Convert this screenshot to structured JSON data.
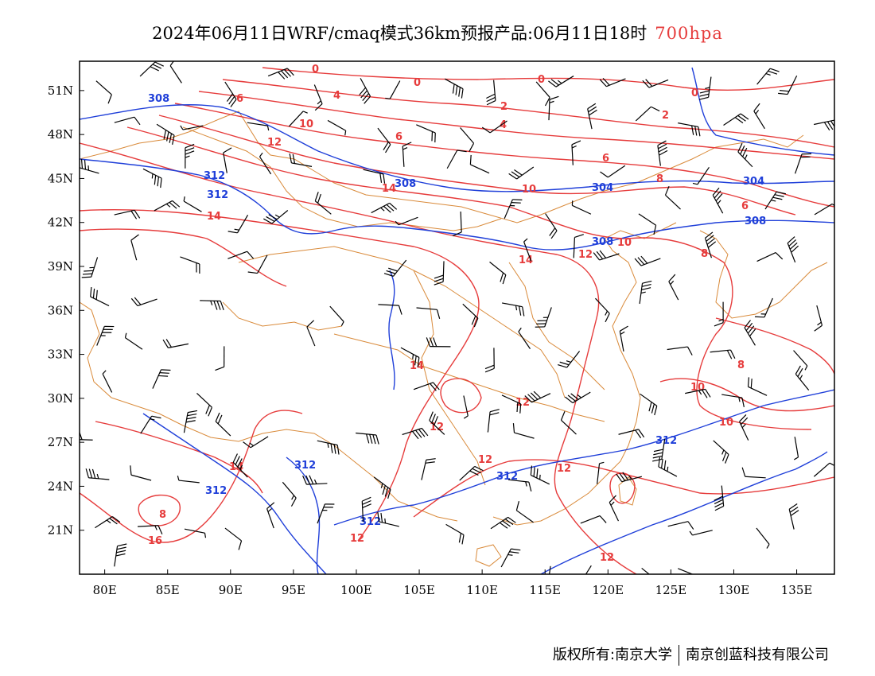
{
  "title": {
    "main": "2024年06月11日WRF/cmaq模式36km预报产品:06月11日18时",
    "level": "700hpa"
  },
  "map": {
    "lat_labels": [
      "51N",
      "48N",
      "45N",
      "42N",
      "39N",
      "36N",
      "33N",
      "30N",
      "27N",
      "24N",
      "21N"
    ],
    "lon_labels": [
      "80E",
      "85E",
      "90E",
      "95E",
      "100E",
      "105E",
      "110E",
      "115E",
      "120E",
      "125E",
      "130E",
      "135E"
    ],
    "lon_range": [
      78,
      138
    ],
    "lat_range": [
      18,
      53
    ],
    "colors": {
      "temperature": "#e63c3c",
      "height": "#1f3fd9",
      "border": "#d98a3a",
      "wind": "#000000"
    },
    "temperature_labels": [
      "0",
      "0",
      "0",
      "2",
      "2",
      "4",
      "4",
      "6",
      "6",
      "6",
      "6",
      "8",
      "8",
      "8",
      "10",
      "10",
      "10",
      "10",
      "10",
      "12",
      "12",
      "12",
      "12",
      "12",
      "12",
      "12",
      "14",
      "14",
      "14",
      "14",
      "14",
      "16",
      "8"
    ],
    "height_labels": [
      "308",
      "312",
      "312",
      "308",
      "304",
      "304",
      "308",
      "308",
      "312",
      "312",
      "312",
      "312"
    ]
  },
  "footer": {
    "copyright": "版权所有:南京大学",
    "company": "南京创蓝科技有限公司"
  }
}
